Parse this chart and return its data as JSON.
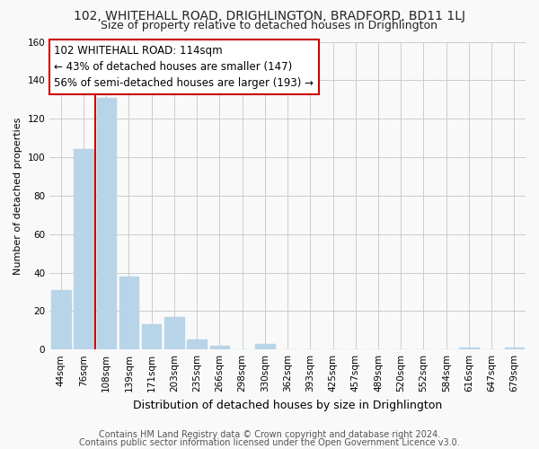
{
  "title": "102, WHITEHALL ROAD, DRIGHLINGTON, BRADFORD, BD11 1LJ",
  "subtitle": "Size of property relative to detached houses in Drighlington",
  "xlabel": "Distribution of detached houses by size in Drighlington",
  "ylabel": "Number of detached properties",
  "bar_labels": [
    "44sqm",
    "76sqm",
    "108sqm",
    "139sqm",
    "171sqm",
    "203sqm",
    "235sqm",
    "266sqm",
    "298sqm",
    "330sqm",
    "362sqm",
    "393sqm",
    "425sqm",
    "457sqm",
    "489sqm",
    "520sqm",
    "552sqm",
    "584sqm",
    "616sqm",
    "647sqm",
    "679sqm"
  ],
  "bar_values": [
    31,
    104,
    131,
    38,
    13,
    17,
    5,
    2,
    0,
    3,
    0,
    0,
    0,
    0,
    0,
    0,
    0,
    0,
    1,
    0,
    1
  ],
  "bar_color": "#b8d4e8",
  "property_line_x": 2,
  "annotation_title": "102 WHITEHALL ROAD: 114sqm",
  "annotation_line1": "← 43% of detached houses are smaller (147)",
  "annotation_line2": "56% of semi-detached houses are larger (193) →",
  "footer_line1": "Contains HM Land Registry data © Crown copyright and database right 2024.",
  "footer_line2": "Contains public sector information licensed under the Open Government Licence v3.0.",
  "ylim": [
    0,
    160
  ],
  "yticks": [
    0,
    20,
    40,
    60,
    80,
    100,
    120,
    140,
    160
  ],
  "bg_color": "#f9f9f9",
  "grid_color": "#cccccc",
  "annotation_box_color": "#ffffff",
  "annotation_border_color": "#cc0000",
  "line_color": "#cc0000",
  "title_fontsize": 10,
  "subtitle_fontsize": 9,
  "xlabel_fontsize": 9,
  "ylabel_fontsize": 8,
  "tick_fontsize": 7.5,
  "annotation_fontsize": 8.5,
  "footer_fontsize": 7
}
